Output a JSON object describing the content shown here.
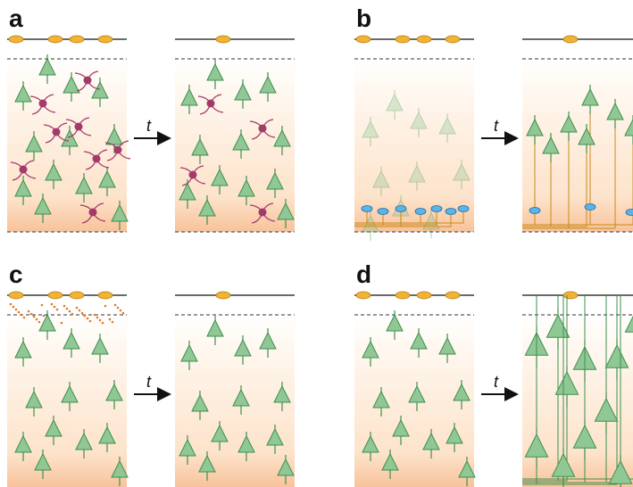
{
  "panels": [
    {
      "label": "a",
      "arrow_label": "t"
    },
    {
      "label": "b",
      "arrow_label": "t"
    },
    {
      "label": "c",
      "arrow_label": "t"
    },
    {
      "label": "d",
      "arrow_label": "t"
    }
  ]
}
